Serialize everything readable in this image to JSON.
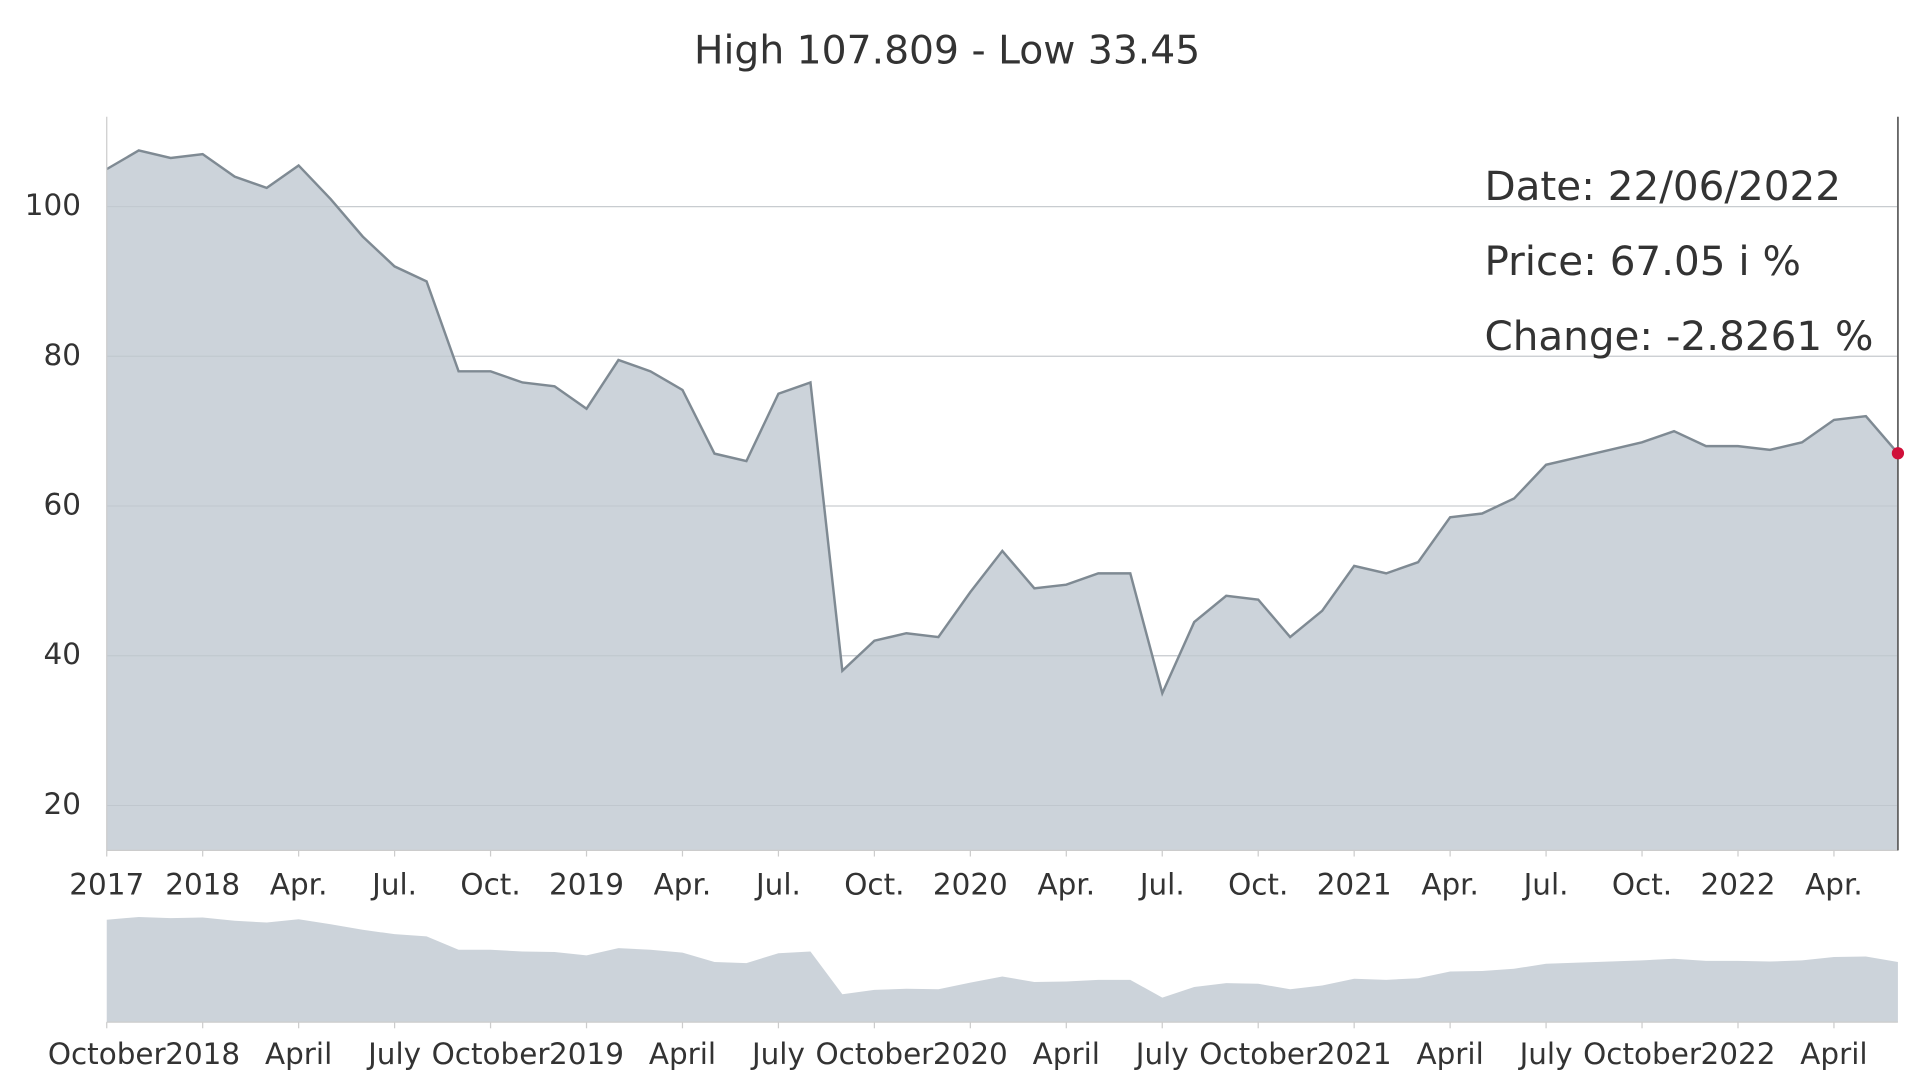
{
  "chart_data": {
    "type": "area",
    "title": "High 107.809 - Low 33.45",
    "x": [
      "2017-10",
      "2017-11",
      "2017-12",
      "2018-01",
      "2018-02",
      "2018-03",
      "2018-04",
      "2018-05",
      "2018-06",
      "2018-07",
      "2018-08",
      "2018-09",
      "2018-10",
      "2018-11",
      "2018-12",
      "2019-01",
      "2019-02",
      "2019-03",
      "2019-04",
      "2019-05",
      "2019-06",
      "2019-07",
      "2019-08",
      "2019-09",
      "2019-10",
      "2019-11",
      "2019-12",
      "2020-01",
      "2020-02",
      "2020-03",
      "2020-04",
      "2020-05",
      "2020-06",
      "2020-07",
      "2020-08",
      "2020-09",
      "2020-10",
      "2020-11",
      "2020-12",
      "2021-01",
      "2021-02",
      "2021-03",
      "2021-04",
      "2021-05",
      "2021-06",
      "2021-07",
      "2021-08",
      "2021-09",
      "2021-10",
      "2021-11",
      "2021-12",
      "2022-01",
      "2022-02",
      "2022-03",
      "2022-04",
      "2022-05",
      "2022-06"
    ],
    "series": [
      {
        "name": "Price",
        "color": "#7f8a93",
        "fill": "#ccd3da",
        "values": [
          105,
          107.5,
          106.5,
          107,
          104,
          102.5,
          105.5,
          101,
          96,
          92,
          90,
          78,
          78,
          76.5,
          76,
          73,
          79.5,
          78,
          75.5,
          67,
          66,
          75,
          76.5,
          38,
          42,
          43,
          42.5,
          48.5,
          54,
          49,
          49.5,
          51,
          51,
          35,
          44.5,
          48,
          47.5,
          42.5,
          46,
          52,
          51,
          52.5,
          58.5,
          59,
          61,
          65.5,
          66.5,
          67.5,
          68.5,
          70,
          68,
          68,
          67.5,
          68.5,
          71.5,
          72,
          67.05
        ]
      }
    ],
    "xlim": [
      "2017-10",
      "2022-06"
    ],
    "xticks": [
      {
        "value": "2017-10",
        "label": "2017"
      },
      {
        "value": "2018-01",
        "label": "2018"
      },
      {
        "value": "2018-04",
        "label": "Apr."
      },
      {
        "value": "2018-07",
        "label": "Jul."
      },
      {
        "value": "2018-10",
        "label": "Oct."
      },
      {
        "value": "2019-01",
        "label": "2019"
      },
      {
        "value": "2019-04",
        "label": "Apr."
      },
      {
        "value": "2019-07",
        "label": "Jul."
      },
      {
        "value": "2019-10",
        "label": "Oct."
      },
      {
        "value": "2020-01",
        "label": "2020"
      },
      {
        "value": "2020-04",
        "label": "Apr."
      },
      {
        "value": "2020-07",
        "label": "Jul."
      },
      {
        "value": "2020-10",
        "label": "Oct."
      },
      {
        "value": "2021-01",
        "label": "2021"
      },
      {
        "value": "2021-04",
        "label": "Apr."
      },
      {
        "value": "2021-07",
        "label": "Jul."
      },
      {
        "value": "2021-10",
        "label": "Oct."
      },
      {
        "value": "2022-01",
        "label": "2022"
      },
      {
        "value": "2022-04",
        "label": "Apr."
      }
    ],
    "ylim": [
      14,
      112
    ],
    "yticks": [
      20,
      40,
      60,
      80,
      100
    ],
    "grid": true,
    "marker_color": "#d0103a",
    "tooltip": [
      "Date: 22/06/2022",
      "Price: 67.05 i %",
      "Change: -2.8261 %"
    ],
    "navigator": {
      "ylim": [
        13,
        110
      ],
      "xticks": [
        {
          "value": "2017-10",
          "label": "October"
        },
        {
          "value": "2018-01",
          "label": "2018"
        },
        {
          "value": "2018-04",
          "label": "April"
        },
        {
          "value": "2018-07",
          "label": "July"
        },
        {
          "value": "2018-10",
          "label": "October"
        },
        {
          "value": "2019-01",
          "label": "2019"
        },
        {
          "value": "2019-04",
          "label": "April"
        },
        {
          "value": "2019-07",
          "label": "July"
        },
        {
          "value": "2019-10",
          "label": "October"
        },
        {
          "value": "2020-01",
          "label": "2020"
        },
        {
          "value": "2020-04",
          "label": "April"
        },
        {
          "value": "2020-07",
          "label": "July"
        },
        {
          "value": "2020-10",
          "label": "October"
        },
        {
          "value": "2021-01",
          "label": "2021"
        },
        {
          "value": "2021-04",
          "label": "April"
        },
        {
          "value": "2021-07",
          "label": "July"
        },
        {
          "value": "2021-10",
          "label": "October"
        },
        {
          "value": "2022-01",
          "label": "2022"
        },
        {
          "value": "2022-04",
          "label": "April"
        }
      ]
    }
  }
}
